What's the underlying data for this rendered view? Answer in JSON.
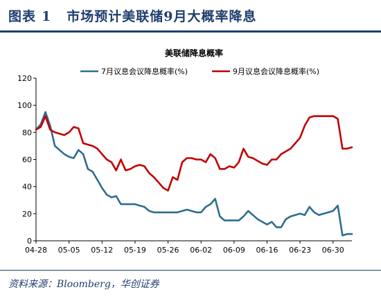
{
  "figure": {
    "label": "图表",
    "number": "1",
    "title": "市场预计美联储9月大概率降息",
    "source": "资料来源：Bloomberg，华创证券"
  },
  "colors": {
    "header": "#1f3d6e",
    "series_july": "#2f6c8f",
    "series_sept": "#c00000"
  },
  "chart_data": {
    "type": "line",
    "title": "美联储降息概率",
    "xlabel": "",
    "ylabel": "",
    "ylim": [
      0,
      120
    ],
    "yticks": [
      0,
      20,
      40,
      60,
      80,
      100,
      120
    ],
    "xticks": [
      {
        "label": "04-28",
        "x": 0
      },
      {
        "label": "05-05",
        "x": 7
      },
      {
        "label": "05-12",
        "x": 14
      },
      {
        "label": "05-19",
        "x": 21
      },
      {
        "label": "05-26",
        "x": 28
      },
      {
        "label": "06-02",
        "x": 35
      },
      {
        "label": "06-09",
        "x": 42
      },
      {
        "label": "06-16",
        "x": 49
      },
      {
        "label": "06-23",
        "x": 56
      },
      {
        "label": "06-30",
        "x": 63
      }
    ],
    "xlim": [
      0,
      67
    ],
    "grid": false,
    "legend": "top",
    "series": [
      {
        "name": "7月议息会议降息概率(%)",
        "color": "#2f6c8f",
        "points": [
          [
            0,
            82
          ],
          [
            1,
            86
          ],
          [
            2,
            95
          ],
          [
            3,
            85
          ],
          [
            4,
            70
          ],
          [
            5,
            67
          ],
          [
            6,
            64
          ],
          [
            7,
            62
          ],
          [
            8,
            61
          ],
          [
            9,
            67
          ],
          [
            10,
            64
          ],
          [
            11,
            53
          ],
          [
            12,
            51
          ],
          [
            13,
            45
          ],
          [
            14,
            39
          ],
          [
            15,
            34
          ],
          [
            16,
            32
          ],
          [
            17,
            33
          ],
          [
            18,
            27
          ],
          [
            19,
            27
          ],
          [
            20,
            27
          ],
          [
            21,
            27
          ],
          [
            22,
            26
          ],
          [
            23,
            25
          ],
          [
            24,
            22
          ],
          [
            25,
            21
          ],
          [
            26,
            21
          ],
          [
            27,
            21
          ],
          [
            28,
            21
          ],
          [
            29,
            21
          ],
          [
            30,
            21
          ],
          [
            31,
            22
          ],
          [
            32,
            23
          ],
          [
            33,
            22
          ],
          [
            34,
            21
          ],
          [
            35,
            21
          ],
          [
            36,
            25
          ],
          [
            37,
            27
          ],
          [
            38,
            31
          ],
          [
            39,
            18
          ],
          [
            40,
            15
          ],
          [
            41,
            15
          ],
          [
            42,
            15
          ],
          [
            43,
            15
          ],
          [
            44,
            18
          ],
          [
            45,
            22
          ],
          [
            46,
            19
          ],
          [
            47,
            16
          ],
          [
            48,
            14
          ],
          [
            49,
            12
          ],
          [
            50,
            14
          ],
          [
            51,
            10
          ],
          [
            52,
            10
          ],
          [
            53,
            16
          ],
          [
            54,
            18
          ],
          [
            55,
            19
          ],
          [
            56,
            20
          ],
          [
            57,
            19
          ],
          [
            58,
            25
          ],
          [
            59,
            21
          ],
          [
            60,
            19
          ],
          [
            61,
            20
          ],
          [
            62,
            21
          ],
          [
            63,
            22
          ],
          [
            64,
            26
          ],
          [
            65,
            4
          ],
          [
            66,
            5
          ],
          [
            67,
            5
          ]
        ]
      },
      {
        "name": "9月议息会议降息概率(%)",
        "color": "#c00000",
        "points": [
          [
            0,
            82
          ],
          [
            1,
            84
          ],
          [
            2,
            92
          ],
          [
            3,
            82
          ],
          [
            4,
            80
          ],
          [
            5,
            79
          ],
          [
            6,
            78
          ],
          [
            7,
            80
          ],
          [
            8,
            84
          ],
          [
            9,
            83
          ],
          [
            10,
            72
          ],
          [
            11,
            71
          ],
          [
            12,
            70
          ],
          [
            13,
            68
          ],
          [
            14,
            64
          ],
          [
            15,
            60
          ],
          [
            16,
            58
          ],
          [
            17,
            52
          ],
          [
            18,
            60
          ],
          [
            19,
            52
          ],
          [
            20,
            53
          ],
          [
            21,
            55
          ],
          [
            22,
            56
          ],
          [
            23,
            55
          ],
          [
            24,
            50
          ],
          [
            25,
            47
          ],
          [
            26,
            43
          ],
          [
            27,
            39
          ],
          [
            28,
            37
          ],
          [
            29,
            47
          ],
          [
            30,
            45
          ],
          [
            31,
            58
          ],
          [
            32,
            61
          ],
          [
            33,
            61
          ],
          [
            34,
            60
          ],
          [
            35,
            60
          ],
          [
            36,
            58
          ],
          [
            37,
            64
          ],
          [
            38,
            61
          ],
          [
            39,
            53
          ],
          [
            40,
            53
          ],
          [
            41,
            55
          ],
          [
            42,
            54
          ],
          [
            43,
            58
          ],
          [
            44,
            68
          ],
          [
            45,
            62
          ],
          [
            46,
            61
          ],
          [
            47,
            59
          ],
          [
            48,
            57
          ],
          [
            49,
            56
          ],
          [
            50,
            60
          ],
          [
            51,
            60
          ],
          [
            52,
            64
          ],
          [
            53,
            66
          ],
          [
            54,
            68
          ],
          [
            55,
            72
          ],
          [
            56,
            76
          ],
          [
            57,
            85
          ],
          [
            58,
            91
          ],
          [
            59,
            92
          ],
          [
            60,
            92
          ],
          [
            61,
            92
          ],
          [
            62,
            92
          ],
          [
            63,
            92
          ],
          [
            64,
            90
          ],
          [
            65,
            68
          ],
          [
            66,
            68
          ],
          [
            67,
            69
          ]
        ]
      }
    ]
  }
}
